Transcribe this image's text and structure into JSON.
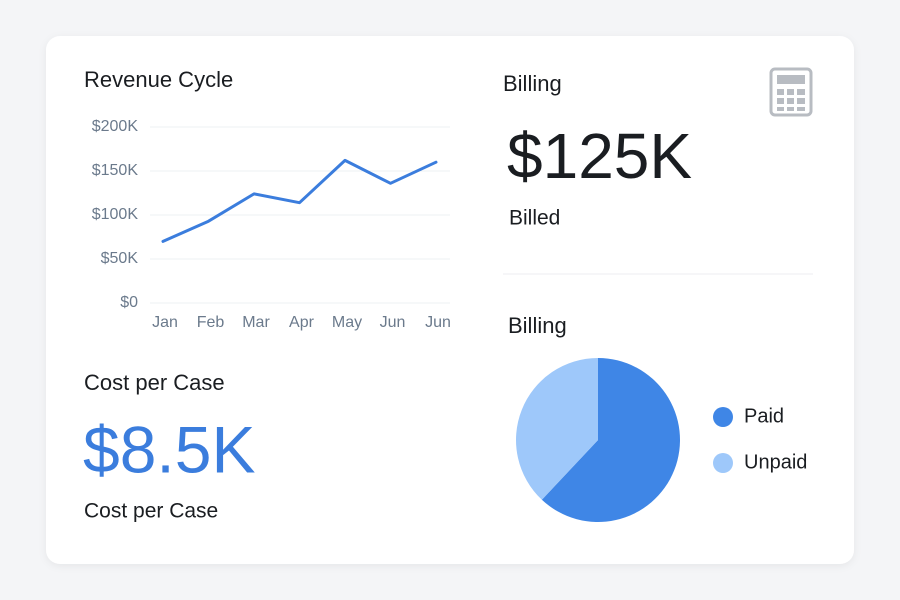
{
  "chart_data": [
    {
      "type": "line",
      "title": "Revenue Cycle",
      "categories": [
        "Jan",
        "Feb",
        "Mar",
        "Apr",
        "May",
        "Jun",
        "Jun"
      ],
      "values": [
        70000,
        93000,
        124000,
        114000,
        162000,
        136000,
        160000
      ],
      "color": "#3b7ddd",
      "ylim": [
        0,
        200000
      ],
      "yticks": [
        {
          "value": 0,
          "label": "$0"
        },
        {
          "value": 50000,
          "label": "$50K"
        },
        {
          "value": 100000,
          "label": "$100K"
        },
        {
          "value": 150000,
          "label": "$150K"
        },
        {
          "value": 200000,
          "label": "$200K"
        }
      ],
      "grid": true
    },
    {
      "type": "pie",
      "title": "Billing",
      "categories": [
        "Paid",
        "Unpaid"
      ],
      "values": [
        62,
        38
      ],
      "colors": [
        "#3f86e6",
        "#9ec8fa"
      ],
      "legend": "right"
    }
  ],
  "billing": {
    "title": "Billing",
    "value": "$125K",
    "label": "Billed"
  },
  "cost_per_case": {
    "title": "Cost per Case",
    "value": "$8.5K",
    "label": "Cost per Case"
  }
}
